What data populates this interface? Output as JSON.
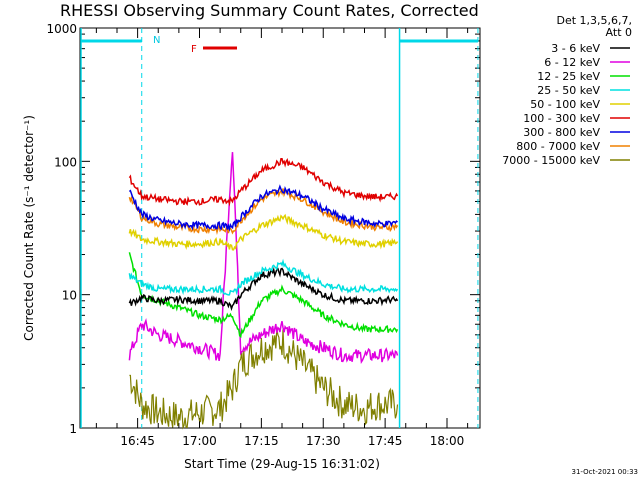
{
  "chart_data": {
    "type": "line",
    "title": "RHESSI Observing Summary Count Rates, Corrected",
    "xlabel": "Start Time (29-Aug-15 16:31:02)",
    "ylabel": "Corrected Count Rate (s⁻¹ detector⁻¹)",
    "yscale": "log",
    "ylim": [
      1,
      1000
    ],
    "xlim": [
      "16:31:02",
      "18:08:00"
    ],
    "x_ticks": [
      "16:45",
      "17:00",
      "17:15",
      "17:30",
      "17:45",
      "18:00"
    ],
    "y_ticks": [
      "1",
      "10",
      "100",
      "1000"
    ],
    "legend_header": [
      "Det 1,3,5,6,7,",
      "Att 0"
    ],
    "legend_position": "right, outside plot",
    "annotations": {
      "night_label": "N",
      "flare_label": "F",
      "footer_date": "31-Oct-2021 00:33"
    },
    "series": [
      {
        "name": "3 - 6 keV",
        "color": "#000000",
        "x": [
          "16:43",
          "16:46",
          "16:50",
          "16:55",
          "17:00",
          "17:05",
          "17:08",
          "17:10",
          "17:15",
          "17:20",
          "17:25",
          "17:30",
          "17:35",
          "17:40",
          "17:43",
          "17:46",
          "17:48"
        ],
        "y": [
          8.5,
          9.5,
          9.0,
          9.2,
          9.0,
          9.0,
          8.0,
          10,
          14,
          15,
          12,
          10,
          9,
          9,
          9,
          9.2,
          9.0
        ]
      },
      {
        "name": "6 - 12 keV",
        "color": "#e000e0",
        "x": [
          "16:43",
          "16:46",
          "16:50",
          "16:55",
          "17:00",
          "17:05",
          "17:07",
          "17:08",
          "17:10",
          "17:15",
          "17:20",
          "17:25",
          "17:30",
          "17:35",
          "17:40",
          "17:43",
          "17:46",
          "17:48"
        ],
        "y": [
          3.5,
          6,
          5,
          4.5,
          4,
          3.5,
          40,
          130,
          4,
          5,
          6,
          4.5,
          4,
          3.5,
          3.5,
          3.5,
          3.5,
          3.5
        ]
      },
      {
        "name": "12 - 25 keV",
        "color": "#00e000",
        "x": [
          "16:43",
          "16:46",
          "16:50",
          "16:55",
          "17:00",
          "17:05",
          "17:08",
          "17:10",
          "17:15",
          "17:20",
          "17:25",
          "17:30",
          "17:35",
          "17:40",
          "17:43",
          "17:46",
          "17:48"
        ],
        "y": [
          20,
          10,
          9,
          8,
          7,
          6.5,
          7,
          5,
          9,
          11,
          9,
          7,
          6,
          5.5,
          5.5,
          5.5,
          5.5
        ]
      },
      {
        "name": "25 - 50 keV",
        "color": "#00e0e0",
        "x": [
          "16:43",
          "16:46",
          "16:50",
          "16:55",
          "17:00",
          "17:05",
          "17:08",
          "17:10",
          "17:15",
          "17:20",
          "17:25",
          "17:30",
          "17:35",
          "17:40",
          "17:43",
          "17:46",
          "17:48"
        ],
        "y": [
          14,
          12,
          11,
          11,
          11,
          11,
          10,
          12,
          15,
          17,
          14,
          12,
          11,
          11,
          11,
          11,
          11
        ]
      },
      {
        "name": "50 - 100 keV",
        "color": "#e0d000",
        "x": [
          "16:43",
          "16:46",
          "16:50",
          "16:55",
          "17:00",
          "17:05",
          "17:08",
          "17:10",
          "17:15",
          "17:20",
          "17:25",
          "17:30",
          "17:35",
          "17:40",
          "17:43",
          "17:46",
          "17:48"
        ],
        "y": [
          30,
          26,
          25,
          24,
          24,
          25,
          22,
          26,
          33,
          38,
          33,
          28,
          25,
          24,
          24,
          24,
          25
        ]
      },
      {
        "name": "100 - 300 keV",
        "color": "#e00000",
        "x": [
          "16:43",
          "16:46",
          "16:50",
          "16:55",
          "17:00",
          "17:05",
          "17:08",
          "17:10",
          "17:15",
          "17:20",
          "17:25",
          "17:30",
          "17:35",
          "17:40",
          "17:43",
          "17:46",
          "17:48"
        ],
        "y": [
          75,
          55,
          52,
          50,
          50,
          52,
          50,
          60,
          85,
          100,
          90,
          70,
          58,
          55,
          54,
          54,
          55
        ]
      },
      {
        "name": "300 - 800 keV",
        "color": "#0000e0",
        "x": [
          "16:43",
          "16:46",
          "16:50",
          "16:55",
          "17:00",
          "17:05",
          "17:08",
          "17:10",
          "17:15",
          "17:20",
          "17:25",
          "17:30",
          "17:35",
          "17:40",
          "17:43",
          "17:46",
          "17:48"
        ],
        "y": [
          60,
          40,
          36,
          34,
          33,
          33,
          32,
          38,
          55,
          62,
          55,
          44,
          37,
          35,
          34,
          34,
          35
        ]
      },
      {
        "name": "800 - 7000 keV",
        "color": "#f08000",
        "x": [
          "16:43",
          "16:46",
          "16:50",
          "16:55",
          "17:00",
          "17:05",
          "17:08",
          "17:10",
          "17:15",
          "17:20",
          "17:25",
          "17:30",
          "17:35",
          "17:40",
          "17:43",
          "17:46",
          "17:48"
        ],
        "y": [
          55,
          38,
          34,
          32,
          31,
          31,
          30,
          36,
          52,
          60,
          52,
          42,
          35,
          33,
          32,
          32,
          33
        ]
      },
      {
        "name": "7000 - 15000 keV",
        "color": "#808000",
        "x": [
          "16:43",
          "16:46",
          "16:50",
          "16:55",
          "17:00",
          "17:05",
          "17:08",
          "17:10",
          "17:15",
          "17:20",
          "17:25",
          "17:30",
          "17:35",
          "17:40",
          "17:43",
          "17:46",
          "17:48"
        ],
        "y": [
          2.5,
          1.5,
          1.3,
          1.2,
          1.3,
          1.4,
          2,
          3,
          4,
          4.5,
          3,
          2,
          1.5,
          1.4,
          1.5,
          1.5,
          1.5
        ]
      }
    ]
  }
}
